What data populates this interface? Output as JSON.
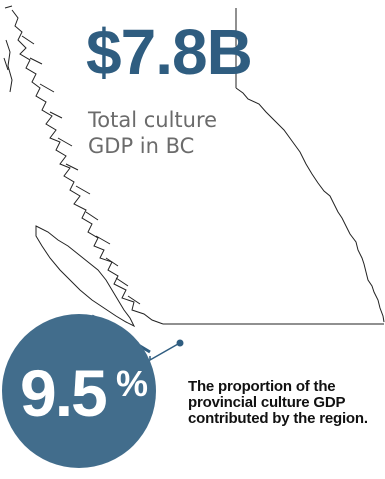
{
  "headline": {
    "value": "$7.8B",
    "label_line1": "Total culture",
    "label_line2": "GDP in BC"
  },
  "region_stat": {
    "value": "9.5",
    "unit": "%",
    "caption": "The proportion of the provincial culture GDP contributed by the region."
  },
  "colors": {
    "accent": "#2f5d80",
    "circle": "#426d8c",
    "map_outline": "#222222",
    "caption_text": "#111111",
    "label_text": "#6b6b6b"
  },
  "map": {
    "icon": "bc-province-outline-map"
  }
}
